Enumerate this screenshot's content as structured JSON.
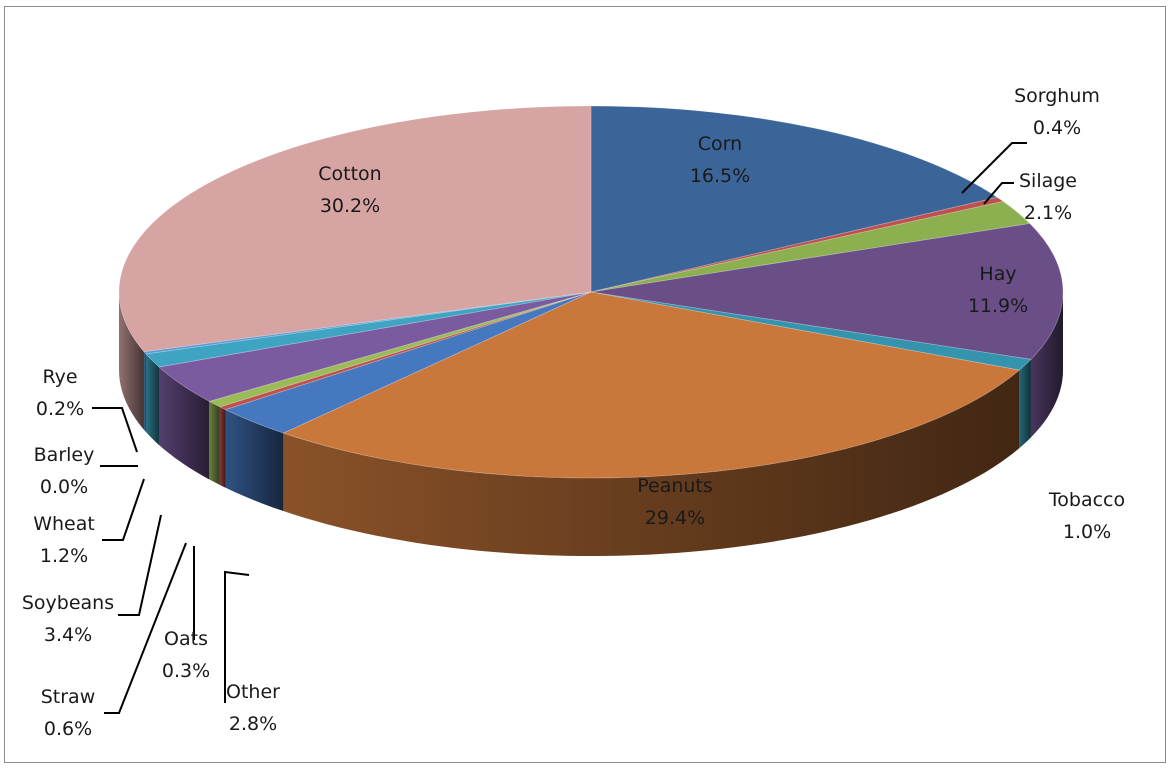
{
  "chart_data": {
    "type": "pie",
    "style": "3d-exploded-none",
    "slices": [
      {
        "label": "Corn",
        "value": 16.5,
        "display": "16.5%",
        "color": "#3B6599"
      },
      {
        "label": "Sorghum",
        "value": 0.4,
        "display": "0.4%",
        "color": "#C0504D"
      },
      {
        "label": "Silage",
        "value": 2.1,
        "display": "2.1%",
        "color": "#8CB04F"
      },
      {
        "label": "Hay",
        "value": 11.9,
        "display": "11.9%",
        "color": "#6A4E87"
      },
      {
        "label": "Tobacco",
        "value": 1.0,
        "display": "1.0%",
        "color": "#3594AD"
      },
      {
        "label": "Peanuts",
        "value": 29.4,
        "display": "29.4%",
        "color": "#C9773A"
      },
      {
        "label": "Other",
        "value": 2.8,
        "display": "2.8%",
        "color": "#4678C0"
      },
      {
        "label": "Oats",
        "value": 0.3,
        "display": "0.3%",
        "color": "#C0504D"
      },
      {
        "label": "Straw",
        "value": 0.6,
        "display": "0.6%",
        "color": "#9BBB59"
      },
      {
        "label": "Soybeans",
        "value": 3.4,
        "display": "3.4%",
        "color": "#7A5BA0"
      },
      {
        "label": "Wheat",
        "value": 1.2,
        "display": "1.2%",
        "color": "#3FA4C2"
      },
      {
        "label": "Barley",
        "value": 0.0,
        "display": "0.0%",
        "color": "#F79646"
      },
      {
        "label": "Rye",
        "value": 0.2,
        "display": "0.2%",
        "color": "#5B9BD5"
      },
      {
        "label": "Cotton",
        "value": 30.2,
        "display": "30.2%",
        "color": "#D5A4A3"
      }
    ]
  }
}
